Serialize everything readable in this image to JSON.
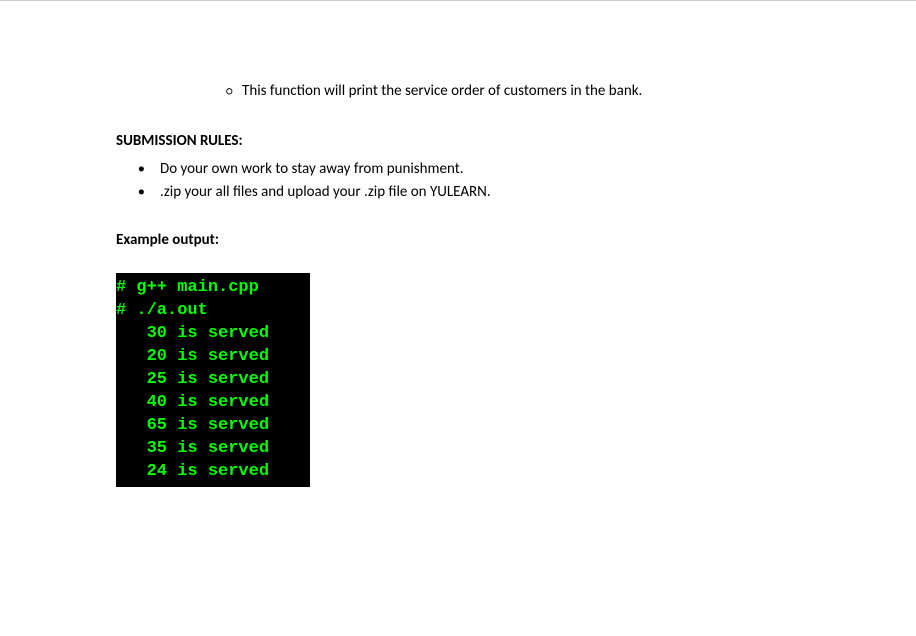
{
  "sub_bullet": {
    "marker": "○",
    "text": "This function will print the service order of customers in the bank."
  },
  "submission_rules": {
    "heading": "SUBMISSION RULES:",
    "items": [
      "Do your own work to stay away from punishment.",
      ".zip your all files and upload your .zip file on YULEARN."
    ]
  },
  "example": {
    "heading": "Example output:",
    "terminal": {
      "background_color": "#000000",
      "text_color": "#00ff00",
      "font_family": "Courier New",
      "lines": [
        "# g++ main.cpp",
        "# ./a.out",
        "   30 is served",
        "   20 is served",
        "   25 is served",
        "   40 is served",
        "   65 is served",
        "   35 is served",
        "   24 is served"
      ]
    }
  }
}
